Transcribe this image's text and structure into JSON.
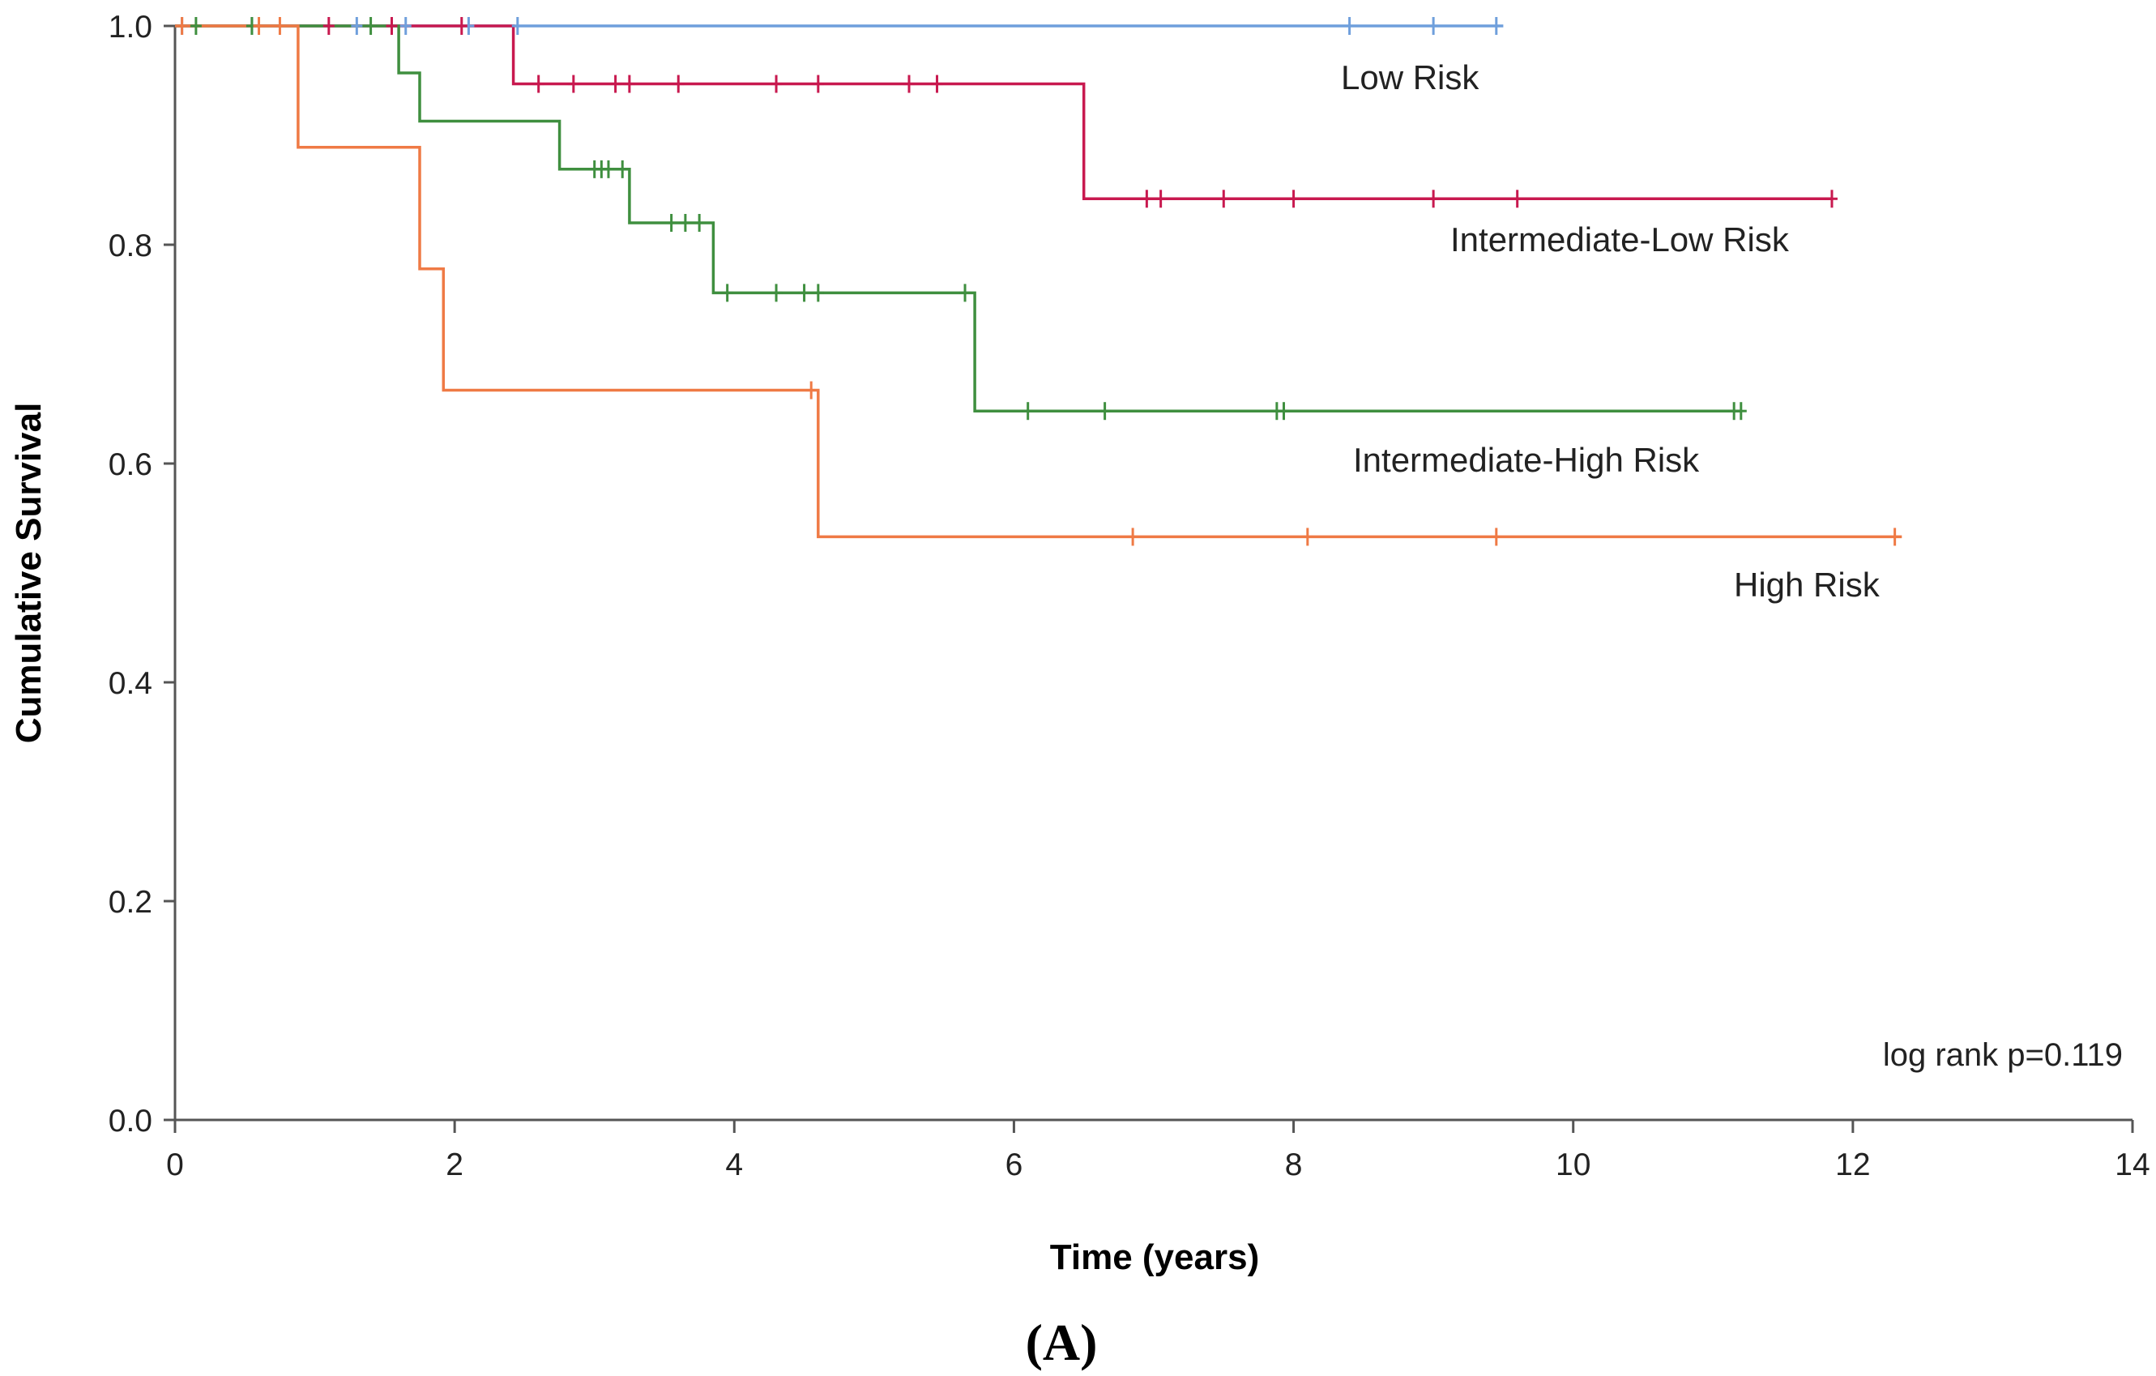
{
  "chart_data": {
    "type": "line",
    "subtype": "kaplan-meier-step",
    "title": "",
    "xlabel": "Time (years)",
    "ylabel": "Cumulative Survival",
    "xlim": [
      0,
      14
    ],
    "ylim": [
      0,
      1.0
    ],
    "xticks": [
      0,
      2,
      4,
      6,
      8,
      10,
      12,
      14
    ],
    "xtick_labels": [
      "0",
      "2",
      "4",
      "6",
      "8",
      "10",
      "12",
      "14"
    ],
    "yticks": [
      0,
      0.2,
      0.4,
      0.6,
      0.8,
      1.0
    ],
    "ytick_labels": [
      "0.0",
      "0.2",
      "0.4",
      "0.6",
      "0.8",
      "1.0"
    ],
    "grid": false,
    "annotation": "log rank p=0.119",
    "panel_label": "(A)",
    "series": [
      {
        "name": "Low Risk",
        "label": "Low Risk",
        "color": "#6f9fdc",
        "steps": [
          [
            0,
            1.0
          ],
          [
            9.5,
            1.0
          ]
        ],
        "censored": [
          [
            0.05,
            1.0
          ],
          [
            0.55,
            1.0
          ],
          [
            1.3,
            1.0
          ],
          [
            1.65,
            1.0
          ],
          [
            2.1,
            1.0
          ],
          [
            2.45,
            1.0
          ],
          [
            8.4,
            1.0
          ],
          [
            9.0,
            1.0
          ],
          [
            9.45,
            1.0
          ]
        ]
      },
      {
        "name": "Intermediate-Low Risk",
        "label": "Intermediate-Low Risk",
        "color": "#c8194f",
        "steps": [
          [
            0,
            1.0
          ],
          [
            2.42,
            1.0
          ],
          [
            2.42,
            0.947
          ],
          [
            6.5,
            0.947
          ],
          [
            6.5,
            0.842
          ],
          [
            11.85,
            0.842
          ]
        ],
        "censored": [
          [
            1.1,
            1.0
          ],
          [
            1.55,
            1.0
          ],
          [
            2.05,
            1.0
          ],
          [
            2.6,
            0.947
          ],
          [
            2.85,
            0.947
          ],
          [
            3.15,
            0.947
          ],
          [
            3.25,
            0.947
          ],
          [
            3.6,
            0.947
          ],
          [
            4.3,
            0.947
          ],
          [
            4.6,
            0.947
          ],
          [
            5.25,
            0.947
          ],
          [
            5.45,
            0.947
          ],
          [
            6.95,
            0.842
          ],
          [
            7.05,
            0.842
          ],
          [
            7.5,
            0.842
          ],
          [
            8.0,
            0.842
          ],
          [
            9.0,
            0.842
          ],
          [
            9.6,
            0.842
          ],
          [
            11.85,
            0.842
          ]
        ]
      },
      {
        "name": "Intermediate-High Risk",
        "label": "Intermediate-High Risk",
        "color": "#3f8f3f",
        "steps": [
          [
            0,
            1.0
          ],
          [
            1.6,
            1.0
          ],
          [
            1.6,
            0.957
          ],
          [
            1.75,
            0.957
          ],
          [
            1.75,
            0.913
          ],
          [
            2.75,
            0.913
          ],
          [
            2.75,
            0.869
          ],
          [
            3.25,
            0.869
          ],
          [
            3.25,
            0.82
          ],
          [
            3.85,
            0.82
          ],
          [
            3.85,
            0.756
          ],
          [
            5.72,
            0.756
          ],
          [
            5.72,
            0.648
          ],
          [
            11.2,
            0.648
          ]
        ],
        "censored": [
          [
            0.15,
            1.0
          ],
          [
            0.55,
            1.0
          ],
          [
            1.4,
            1.0
          ],
          [
            3.0,
            0.869
          ],
          [
            3.05,
            0.869
          ],
          [
            3.1,
            0.869
          ],
          [
            3.2,
            0.869
          ],
          [
            3.55,
            0.82
          ],
          [
            3.65,
            0.82
          ],
          [
            3.75,
            0.82
          ],
          [
            3.95,
            0.756
          ],
          [
            4.3,
            0.756
          ],
          [
            4.5,
            0.756
          ],
          [
            4.6,
            0.756
          ],
          [
            5.65,
            0.756
          ],
          [
            6.1,
            0.648
          ],
          [
            6.65,
            0.648
          ],
          [
            7.88,
            0.648
          ],
          [
            7.93,
            0.648
          ],
          [
            11.15,
            0.648
          ],
          [
            11.2,
            0.648
          ]
        ]
      },
      {
        "name": "High Risk",
        "label": "High Risk",
        "color": "#ef7a45",
        "steps": [
          [
            0,
            1.0
          ],
          [
            0.88,
            1.0
          ],
          [
            0.88,
            0.889
          ],
          [
            1.75,
            0.889
          ],
          [
            1.75,
            0.778
          ],
          [
            1.92,
            0.778
          ],
          [
            1.92,
            0.667
          ],
          [
            4.6,
            0.667
          ],
          [
            4.6,
            0.533
          ],
          [
            12.35,
            0.533
          ]
        ],
        "censored": [
          [
            0.05,
            1.0
          ],
          [
            0.6,
            1.0
          ],
          [
            0.75,
            1.0
          ],
          [
            4.55,
            0.667
          ],
          [
            6.85,
            0.533
          ],
          [
            8.1,
            0.533
          ],
          [
            9.45,
            0.533
          ],
          [
            12.3,
            0.533
          ]
        ]
      }
    ]
  }
}
